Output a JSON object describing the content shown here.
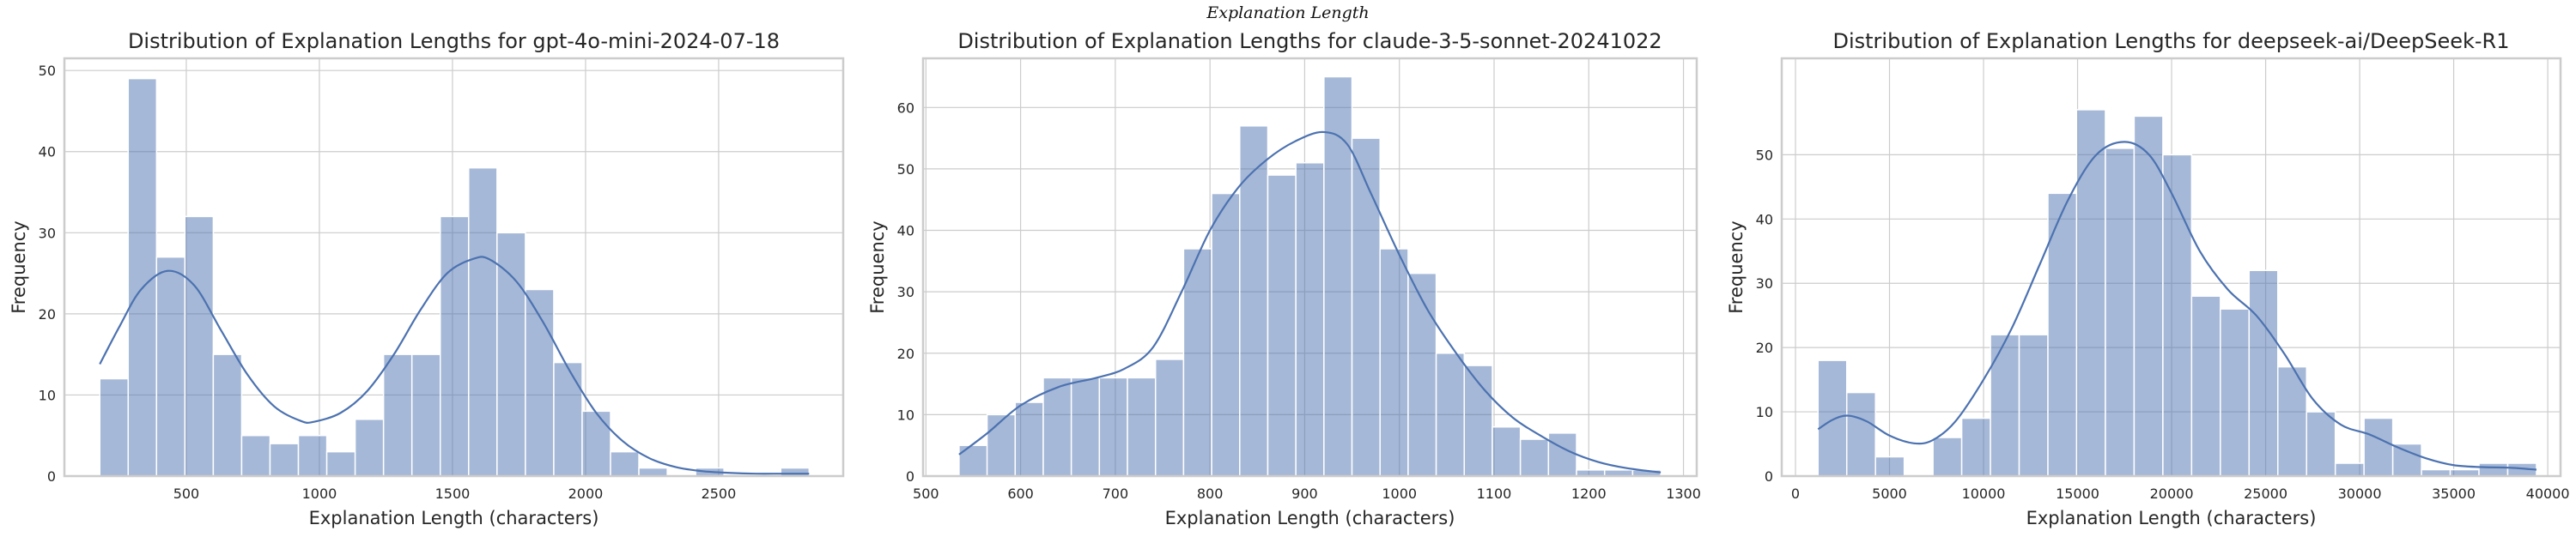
{
  "figure": {
    "suptitle": "Explanation Length",
    "colors": {
      "bar": "#4c72b0",
      "bar_opacity": 0.5,
      "kde": "#4c72b0",
      "grid": "#cccccc",
      "frame": "#cccccc",
      "text": "#262626"
    }
  },
  "chart_data": [
    {
      "type": "bar",
      "subtype": "histogram_with_kde",
      "title": "Distribution of Explanation Lengths for gpt-4o-mini-2024-07-18",
      "xlabel": "Explanation Length (characters)",
      "ylabel": "Frequency",
      "grid": true,
      "xlim": [
        42,
        2968
      ],
      "ylim": [
        0,
        51.5
      ],
      "xticks": [
        500,
        1000,
        1500,
        2000,
        2500
      ],
      "yticks": [
        0,
        10,
        20,
        30,
        40,
        50
      ],
      "bin_start": 175,
      "bin_end": 2840,
      "values": [
        12,
        49,
        27,
        32,
        15,
        5,
        4,
        5,
        3,
        7,
        15,
        15,
        32,
        38,
        30,
        23,
        14,
        8,
        3,
        1,
        0,
        1,
        0,
        0,
        1
      ],
      "kde": [
        [
          175,
          13.8
        ],
        [
          250,
          18.5
        ],
        [
          330,
          23
        ],
        [
          430,
          25.3
        ],
        [
          530,
          23.5
        ],
        [
          630,
          18
        ],
        [
          730,
          12.5
        ],
        [
          830,
          8.6
        ],
        [
          930,
          6.8
        ],
        [
          980,
          6.7
        ],
        [
          1080,
          7.8
        ],
        [
          1180,
          10.5
        ],
        [
          1280,
          15
        ],
        [
          1380,
          20.5
        ],
        [
          1480,
          25
        ],
        [
          1580,
          26.8
        ],
        [
          1640,
          26.7
        ],
        [
          1740,
          24
        ],
        [
          1840,
          19
        ],
        [
          1940,
          13
        ],
        [
          2040,
          7.8
        ],
        [
          2140,
          4.3
        ],
        [
          2240,
          2.2
        ],
        [
          2340,
          1.1
        ],
        [
          2440,
          0.6
        ],
        [
          2540,
          0.4
        ],
        [
          2640,
          0.3
        ],
        [
          2740,
          0.3
        ],
        [
          2840,
          0.3
        ]
      ]
    },
    {
      "type": "bar",
      "subtype": "histogram_with_kde",
      "title": "Distribution of Explanation Lengths for claude-3-5-sonnet-20241022",
      "xlabel": "Explanation Length (characters)",
      "ylabel": "Frequency",
      "grid": true,
      "xlim": [
        497,
        1314
      ],
      "ylim": [
        0,
        68
      ],
      "xticks": [
        500,
        600,
        700,
        800,
        900,
        1000,
        1100,
        1200,
        1300
      ],
      "yticks": [
        0,
        10,
        20,
        30,
        40,
        50,
        60
      ],
      "bin_start": 535,
      "bin_end": 1276,
      "values": [
        5,
        10,
        12,
        16,
        16,
        16,
        16,
        19,
        37,
        46,
        57,
        49,
        51,
        65,
        55,
        37,
        33,
        20,
        18,
        8,
        6,
        7,
        1,
        1,
        1
      ],
      "kde": [
        [
          535,
          3.5
        ],
        [
          565,
          7
        ],
        [
          600,
          11.5
        ],
        [
          640,
          14.5
        ],
        [
          680,
          16
        ],
        [
          710,
          17.5
        ],
        [
          740,
          21
        ],
        [
          770,
          30
        ],
        [
          800,
          40
        ],
        [
          830,
          47
        ],
        [
          860,
          51.5
        ],
        [
          890,
          54.5
        ],
        [
          920,
          56
        ],
        [
          945,
          54
        ],
        [
          970,
          46
        ],
        [
          1000,
          36
        ],
        [
          1030,
          27
        ],
        [
          1060,
          20
        ],
        [
          1090,
          14
        ],
        [
          1120,
          9.5
        ],
        [
          1150,
          6.5
        ],
        [
          1180,
          4
        ],
        [
          1210,
          2.3
        ],
        [
          1240,
          1.3
        ],
        [
          1276,
          0.6
        ]
      ]
    },
    {
      "type": "bar",
      "subtype": "histogram_with_kde",
      "title": "Distribution of Explanation Lengths for deepseek-ai/DeepSeek-R1",
      "xlabel": "Explanation Length (characters)",
      "ylabel": "Frequency",
      "grid": true,
      "xlim": [
        -730,
        40680
      ],
      "ylim": [
        0,
        65
      ],
      "xticks": [
        0,
        5000,
        10000,
        15000,
        20000,
        25000,
        30000,
        35000,
        40000
      ],
      "yticks": [
        0,
        10,
        20,
        30,
        40,
        50
      ],
      "bin_start": 1200,
      "bin_end": 39400,
      "values": [
        18,
        13,
        3,
        0,
        6,
        9,
        22,
        22,
        44,
        57,
        51,
        56,
        50,
        28,
        26,
        32,
        17,
        10,
        2,
        9,
        5,
        1,
        1,
        2,
        2
      ],
      "kde": [
        [
          1200,
          7.3
        ],
        [
          2000,
          8.8
        ],
        [
          2800,
          9.4
        ],
        [
          3800,
          8.5
        ],
        [
          5000,
          6.3
        ],
        [
          6300,
          5.1
        ],
        [
          7300,
          5.6
        ],
        [
          8500,
          8.5
        ],
        [
          10000,
          15
        ],
        [
          11500,
          23
        ],
        [
          13000,
          33
        ],
        [
          14500,
          43
        ],
        [
          16000,
          50
        ],
        [
          17500,
          52
        ],
        [
          18800,
          50
        ],
        [
          20000,
          44
        ],
        [
          21500,
          35
        ],
        [
          23000,
          29
        ],
        [
          24500,
          25
        ],
        [
          26000,
          19
        ],
        [
          27500,
          12
        ],
        [
          29000,
          8
        ],
        [
          30500,
          6.5
        ],
        [
          32000,
          4.5
        ],
        [
          33500,
          2.8
        ],
        [
          35000,
          1.7
        ],
        [
          36500,
          1.4
        ],
        [
          38000,
          1.3
        ],
        [
          39400,
          1
        ]
      ]
    }
  ]
}
